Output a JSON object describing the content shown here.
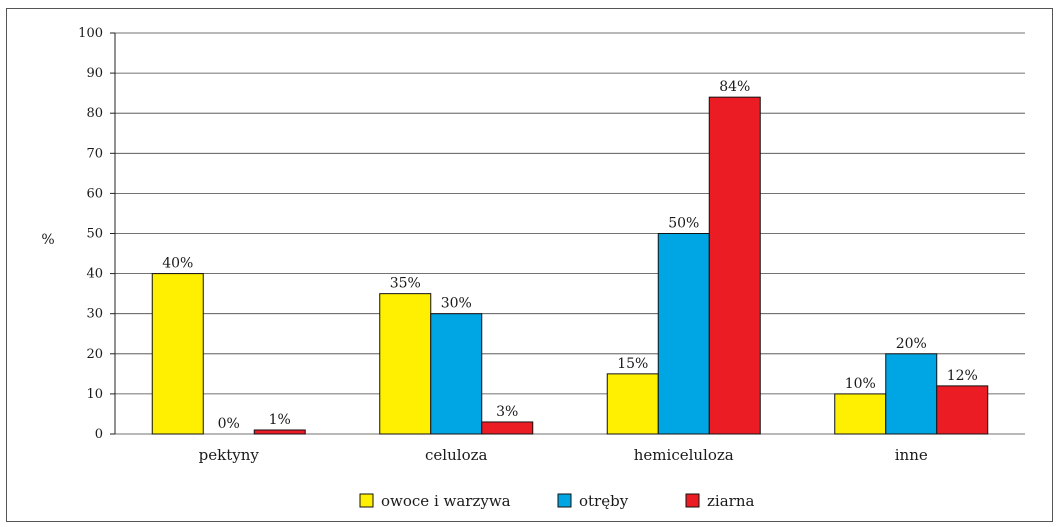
{
  "chart_data": {
    "type": "bar",
    "ylabel": "%",
    "ylim": [
      0,
      100
    ],
    "yticks": [
      "0",
      "10",
      "20",
      "30",
      "40",
      "50",
      "60",
      "70",
      "80",
      "90",
      "100"
    ],
    "grid": true,
    "legend_position": "bottom",
    "categories": [
      "pektyny",
      "celuloza",
      "hemiceluloza",
      "inne"
    ],
    "series": [
      {
        "name": "owoce i warzywa",
        "color": "#ffef00",
        "values": [
          40,
          35,
          15,
          10
        ],
        "labels": [
          "40%",
          "35%",
          "15%",
          "10%"
        ]
      },
      {
        "name": "otręby",
        "color": "#00a6e4",
        "values": [
          0,
          30,
          50,
          20
        ],
        "labels": [
          "0%",
          "30%",
          "50%",
          "20%"
        ]
      },
      {
        "name": "ziarna",
        "color": "#ec1c24",
        "values": [
          1,
          3,
          84,
          12
        ],
        "labels": [
          "1%",
          "3%",
          "84%",
          "12%"
        ]
      }
    ]
  }
}
